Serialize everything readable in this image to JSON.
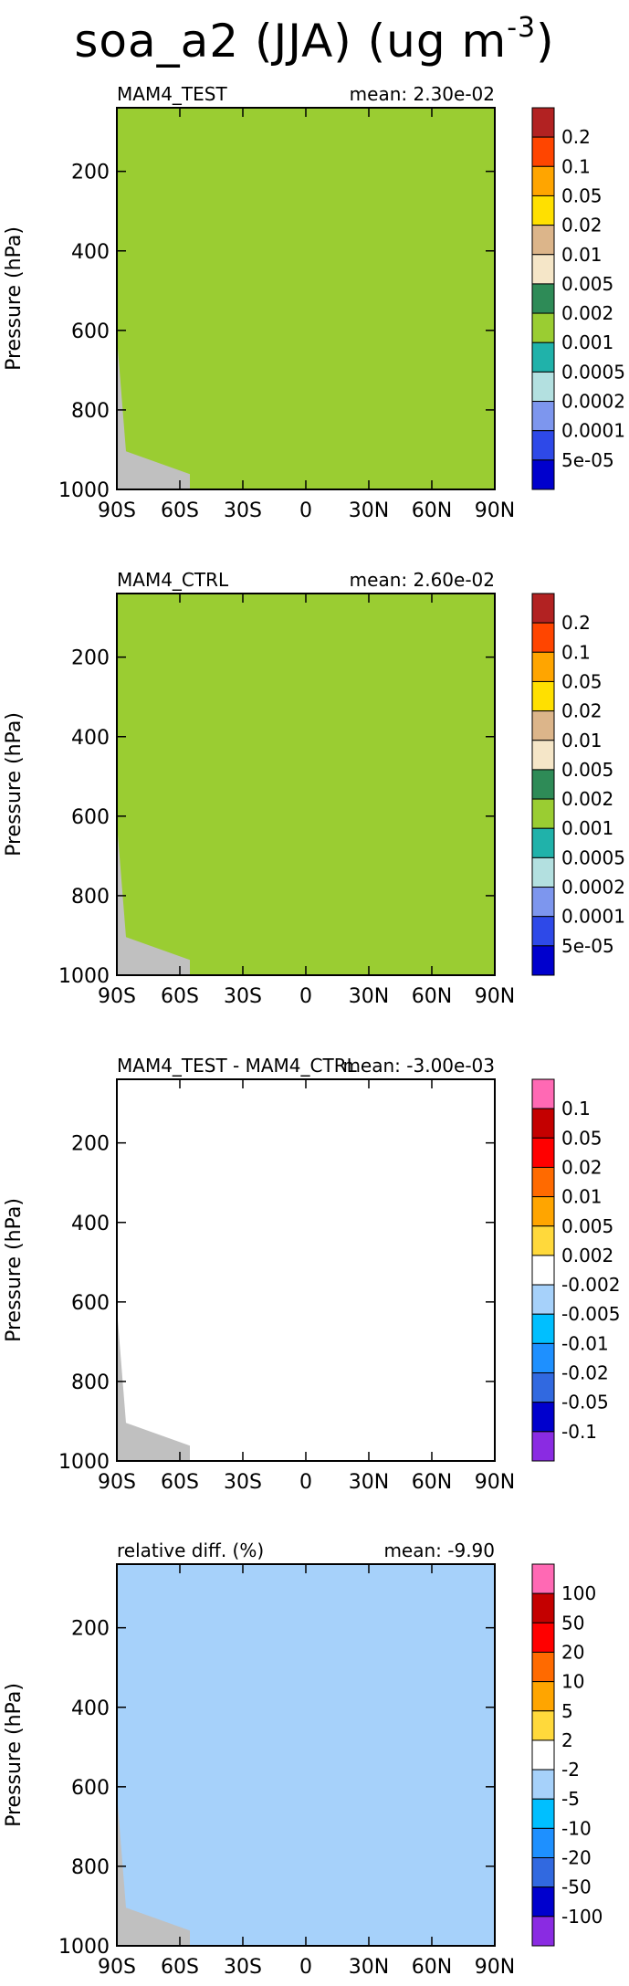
{
  "title": {
    "main": "soa_a2 (JJA) (ug m",
    "sup": "-3",
    "tail": ")"
  },
  "palette": {
    "full": [
      "#0000cd",
      "#2e49e8",
      "#7d96ee",
      "#b3e0e0",
      "#20b2aa",
      "#9acd32",
      "#2e8b57",
      "#f5e6c8",
      "#dcb58a",
      "#ffe000",
      "#ffa500",
      "#ff4500",
      "#b22222"
    ],
    "diff": [
      "#8a2be2",
      "#0000cd",
      "#3169e0",
      "#1e90ff",
      "#00bfff",
      "#a6d1fa",
      "#ffffff",
      "#ffd93b",
      "#ffa500",
      "#ff6a00",
      "#ff0000",
      "#c40000",
      "#ff69b4"
    ],
    "missing": "#c0c0c0"
  },
  "chart_data": [
    {
      "type": "contour",
      "panel_title": "MAM4_TEST",
      "mean_label": "mean: 2.30e-02",
      "ylabel": "Pressure (hPa)",
      "xticks": [
        "90S",
        "60S",
        "30S",
        "0",
        "30N",
        "60N",
        "90N"
      ],
      "yticks": [
        "200",
        "400",
        "600",
        "800",
        "1000"
      ],
      "xlim": [
        -90,
        90
      ],
      "ylim": [
        1000,
        40
      ],
      "colorbar": [
        "0.2",
        "0.1",
        "0.05",
        "0.02",
        "0.01",
        "0.005",
        "0.002",
        "0.001",
        "0.0005",
        "0.0002",
        "0.0001",
        "5e-05"
      ]
    },
    {
      "type": "contour",
      "panel_title": "MAM4_CTRL",
      "mean_label": "mean: 2.60e-02",
      "ylabel": "Pressure (hPa)",
      "xticks": [
        "90S",
        "60S",
        "30S",
        "0",
        "30N",
        "60N",
        "90N"
      ],
      "yticks": [
        "200",
        "400",
        "600",
        "800",
        "1000"
      ],
      "xlim": [
        -90,
        90
      ],
      "ylim": [
        1000,
        40
      ],
      "colorbar": [
        "0.2",
        "0.1",
        "0.05",
        "0.02",
        "0.01",
        "0.005",
        "0.002",
        "0.001",
        "0.0005",
        "0.0002",
        "0.0001",
        "5e-05"
      ]
    },
    {
      "type": "contour",
      "panel_title": "MAM4_TEST - MAM4_CTRL",
      "mean_label": "mean: -3.00e-03",
      "ylabel": "Pressure (hPa)",
      "xticks": [
        "90S",
        "60S",
        "30S",
        "0",
        "30N",
        "60N",
        "90N"
      ],
      "yticks": [
        "200",
        "400",
        "600",
        "800",
        "1000"
      ],
      "xlim": [
        -90,
        90
      ],
      "ylim": [
        1000,
        40
      ],
      "colorbar": [
        "0.1",
        "0.05",
        "0.02",
        "0.01",
        "0.005",
        "0.002",
        "-0.002",
        "-0.005",
        "-0.01",
        "-0.02",
        "-0.05",
        "-0.1"
      ]
    },
    {
      "type": "contour",
      "panel_title": "relative diff. (%)",
      "mean_label": "mean: -9.90",
      "ylabel": "Pressure (hPa)",
      "xticks": [
        "90S",
        "60S",
        "30S",
        "0",
        "30N",
        "60N",
        "90N"
      ],
      "yticks": [
        "200",
        "400",
        "600",
        "800",
        "1000"
      ],
      "xlim": [
        -90,
        90
      ],
      "ylim": [
        1000,
        40
      ],
      "colorbar": [
        "100",
        "50",
        "20",
        "10",
        "5",
        "2",
        "-2",
        "-5",
        "-10",
        "-20",
        "-50",
        "-100"
      ]
    }
  ]
}
